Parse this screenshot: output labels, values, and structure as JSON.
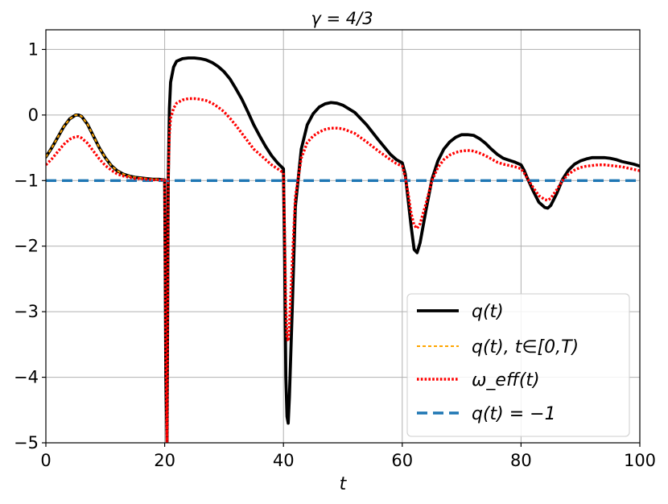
{
  "chart_data": {
    "type": "line",
    "title": "γ = 4/3",
    "xlabel": "t",
    "ylabel": "",
    "xlim": [
      0,
      100
    ],
    "ylim": [
      -5,
      1.3
    ],
    "xticks": [
      0,
      20,
      40,
      60,
      80,
      100
    ],
    "xtick_labels": [
      "0",
      "20",
      "40",
      "60",
      "80",
      "100"
    ],
    "yticks": [
      -5,
      -4,
      -3,
      -2,
      -1,
      0,
      1
    ],
    "ytick_labels": [
      "−5",
      "−4",
      "−3",
      "−2",
      "−1",
      "0",
      "1"
    ],
    "grid": true,
    "legend_position": "lower-right",
    "series": [
      {
        "name": "q(t)",
        "color": "#000000",
        "style": "solid",
        "x": [
          0,
          1,
          2,
          3,
          4,
          5,
          5.5,
          6,
          7,
          8,
          9,
          10,
          11,
          12,
          13,
          14,
          15,
          16,
          17,
          18,
          19,
          20,
          20.2,
          20.4,
          20.6,
          20.8,
          21,
          21.5,
          22,
          23,
          24,
          25,
          26,
          27,
          28,
          29,
          30,
          31,
          32,
          33,
          34,
          35,
          36,
          37,
          38,
          39,
          40,
          40.2,
          40.4,
          40.6,
          40.8,
          41,
          41.5,
          42,
          43,
          44,
          45,
          46,
          47,
          48,
          49,
          50,
          52,
          54,
          56,
          58,
          59,
          60,
          60.5,
          61,
          61.5,
          62,
          62.5,
          63,
          64,
          65,
          66,
          67,
          68,
          69,
          70,
          71,
          72,
          73,
          74,
          75,
          76,
          77,
          78,
          79,
          80,
          80.5,
          81,
          82,
          83,
          84,
          84.5,
          85,
          86,
          87,
          88,
          89,
          90,
          91,
          92,
          93,
          94,
          95,
          96,
          97,
          98,
          99,
          100
        ],
        "y": [
          -0.64,
          -0.5,
          -0.34,
          -0.18,
          -0.06,
          0.0,
          0.0,
          -0.02,
          -0.14,
          -0.32,
          -0.5,
          -0.65,
          -0.77,
          -0.85,
          -0.9,
          -0.93,
          -0.95,
          -0.96,
          -0.97,
          -0.98,
          -0.98,
          -0.99,
          -4,
          -5,
          -1,
          0.1,
          0.5,
          0.73,
          0.82,
          0.86,
          0.87,
          0.87,
          0.86,
          0.84,
          0.8,
          0.74,
          0.66,
          0.55,
          0.4,
          0.24,
          0.05,
          -0.15,
          -0.32,
          -0.48,
          -0.62,
          -0.73,
          -0.82,
          -2.2,
          -4.0,
          -4.6,
          -4.7,
          -4.3,
          -2.9,
          -1.4,
          -0.52,
          -0.15,
          0.02,
          0.12,
          0.17,
          0.19,
          0.18,
          0.15,
          0.04,
          -0.15,
          -0.38,
          -0.6,
          -0.68,
          -0.73,
          -0.9,
          -1.3,
          -1.7,
          -2.05,
          -2.1,
          -1.95,
          -1.45,
          -0.98,
          -0.7,
          -0.52,
          -0.41,
          -0.34,
          -0.3,
          -0.3,
          -0.31,
          -0.36,
          -0.43,
          -0.52,
          -0.6,
          -0.66,
          -0.69,
          -0.72,
          -0.76,
          -0.84,
          -0.95,
          -1.15,
          -1.33,
          -1.41,
          -1.42,
          -1.38,
          -1.2,
          -0.98,
          -0.84,
          -0.75,
          -0.7,
          -0.67,
          -0.65,
          -0.65,
          -0.65,
          -0.66,
          -0.68,
          -0.71,
          -0.73,
          -0.75,
          -0.78
        ]
      },
      {
        "name": "q(t),  t∈[0,T)",
        "color": "#ffa500",
        "style": "dashed",
        "x": [
          0,
          1,
          2,
          3,
          4,
          5,
          5.5,
          6,
          7,
          8,
          9,
          10,
          11,
          12,
          13,
          14,
          15,
          16,
          17,
          18,
          19,
          20
        ],
        "y": [
          -0.64,
          -0.5,
          -0.34,
          -0.18,
          -0.06,
          0.0,
          0.0,
          -0.02,
          -0.14,
          -0.32,
          -0.5,
          -0.65,
          -0.77,
          -0.85,
          -0.9,
          -0.93,
          -0.95,
          -0.96,
          -0.97,
          -0.98,
          -0.98,
          -0.99
        ]
      },
      {
        "name": "ω_eff(t)",
        "color": "#ff0000",
        "style": "dotted",
        "x": [
          0,
          1,
          2,
          3,
          4,
          5,
          5.5,
          6,
          7,
          8,
          9,
          10,
          11,
          12,
          13,
          14,
          15,
          16,
          17,
          18,
          19,
          20,
          20.2,
          20.4,
          20.6,
          20.8,
          21,
          21.5,
          22,
          23,
          24,
          25,
          26,
          27,
          28,
          29,
          30,
          31,
          32,
          33,
          34,
          35,
          36,
          37,
          38,
          39,
          40,
          40.2,
          40.4,
          40.6,
          40.8,
          41,
          41.5,
          42,
          43,
          44,
          45,
          46,
          47,
          48,
          49,
          50,
          52,
          54,
          56,
          58,
          59,
          60,
          60.5,
          61,
          61.5,
          62,
          62.5,
          63,
          64,
          65,
          66,
          67,
          68,
          69,
          70,
          71,
          72,
          73,
          74,
          75,
          76,
          77,
          78,
          79,
          80,
          80.5,
          81,
          82,
          83,
          84,
          84.5,
          85,
          86,
          87,
          88,
          89,
          90,
          91,
          92,
          93,
          94,
          95,
          96,
          97,
          98,
          99,
          100
        ],
        "y": [
          -0.76,
          -0.67,
          -0.56,
          -0.45,
          -0.37,
          -0.33,
          -0.33,
          -0.35,
          -0.43,
          -0.55,
          -0.67,
          -0.77,
          -0.84,
          -0.9,
          -0.93,
          -0.95,
          -0.97,
          -0.97,
          -0.98,
          -0.99,
          -0.99,
          -0.99,
          -3.7,
          -5,
          -1,
          -0.3,
          -0.05,
          0.1,
          0.18,
          0.23,
          0.25,
          0.25,
          0.24,
          0.22,
          0.18,
          0.12,
          0.05,
          -0.05,
          -0.16,
          -0.28,
          -0.4,
          -0.52,
          -0.6,
          -0.68,
          -0.76,
          -0.82,
          -0.88,
          -1.8,
          -2.9,
          -3.4,
          -3.45,
          -3.2,
          -2.2,
          -1.25,
          -0.66,
          -0.42,
          -0.32,
          -0.26,
          -0.22,
          -0.2,
          -0.2,
          -0.21,
          -0.28,
          -0.41,
          -0.55,
          -0.68,
          -0.74,
          -0.78,
          -0.95,
          -1.2,
          -1.5,
          -1.68,
          -1.73,
          -1.66,
          -1.35,
          -1.0,
          -0.8,
          -0.68,
          -0.61,
          -0.57,
          -0.55,
          -0.54,
          -0.55,
          -0.58,
          -0.62,
          -0.67,
          -0.72,
          -0.75,
          -0.77,
          -0.79,
          -0.82,
          -0.88,
          -0.96,
          -1.1,
          -1.23,
          -1.29,
          -1.3,
          -1.27,
          -1.14,
          -1.0,
          -0.9,
          -0.84,
          -0.8,
          -0.78,
          -0.77,
          -0.76,
          -0.76,
          -0.77,
          -0.78,
          -0.79,
          -0.81,
          -0.83,
          -0.85
        ]
      },
      {
        "name": "q(t) = −1",
        "color": "#1f77b4",
        "style": "dashed",
        "x": [
          0,
          100
        ],
        "y": [
          -1,
          -1
        ]
      }
    ]
  }
}
